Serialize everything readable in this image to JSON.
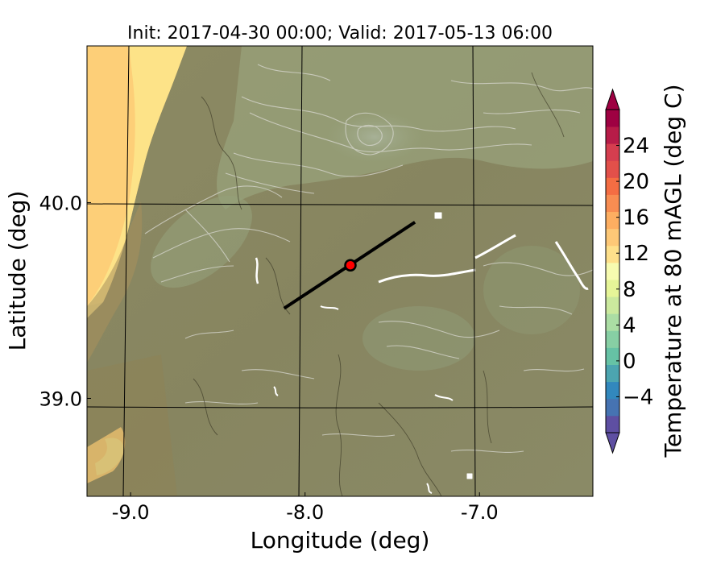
{
  "title": "Init: 2017-04-30 00:00; Valid: 2017-05-13 06:00",
  "x_axis": {
    "label": "Longitude (deg)",
    "ticks": [
      {
        "value": -9.0,
        "label": "-9.0"
      },
      {
        "value": -8.0,
        "label": "-8.0"
      },
      {
        "value": -7.0,
        "label": "-7.0"
      }
    ]
  },
  "y_axis": {
    "label": "Latitude (deg)",
    "ticks": [
      {
        "value": 40.0,
        "label": "40.0"
      },
      {
        "value": 39.0,
        "label": "39.0"
      }
    ]
  },
  "colorbar": {
    "label": "Temperature at 80 mAGL (deg C)",
    "min": -8,
    "max": 28,
    "step": 2,
    "extend": "both",
    "ticks": [
      {
        "value": -4,
        "label": "−4"
      },
      {
        "value": 0,
        "label": "0"
      },
      {
        "value": 4,
        "label": "4"
      },
      {
        "value": 8,
        "label": "8"
      },
      {
        "value": 12,
        "label": "12"
      },
      {
        "value": 16,
        "label": "16"
      },
      {
        "value": 20,
        "label": "20"
      },
      {
        "value": 24,
        "label": "24"
      }
    ],
    "colors": [
      "#5e4fa2",
      "#4673b2",
      "#3288bd",
      "#4ca5b0",
      "#66c2a5",
      "#87cfa4",
      "#abdda4",
      "#cbe99e",
      "#e6f598",
      "#f7fbb0",
      "#fee08b",
      "#fdc877",
      "#fdae61",
      "#f88d52",
      "#f46d43",
      "#e2504a",
      "#d53e4f",
      "#b71c48",
      "#9e0142"
    ]
  },
  "map": {
    "lon_range": [
      -9.25,
      -6.35
    ],
    "lat_range": [
      38.5,
      40.8
    ],
    "land_color": "#8a8660",
    "ocean_color": "#fdd07a",
    "coast_band_color": "#fde58a",
    "cross_section": {
      "start": {
        "lon": -8.12,
        "lat": 39.46
      },
      "end": {
        "lon": -7.37,
        "lat": 39.9
      }
    },
    "point": {
      "lon": -7.74,
      "lat": 39.68,
      "color": "#ff0000"
    }
  }
}
